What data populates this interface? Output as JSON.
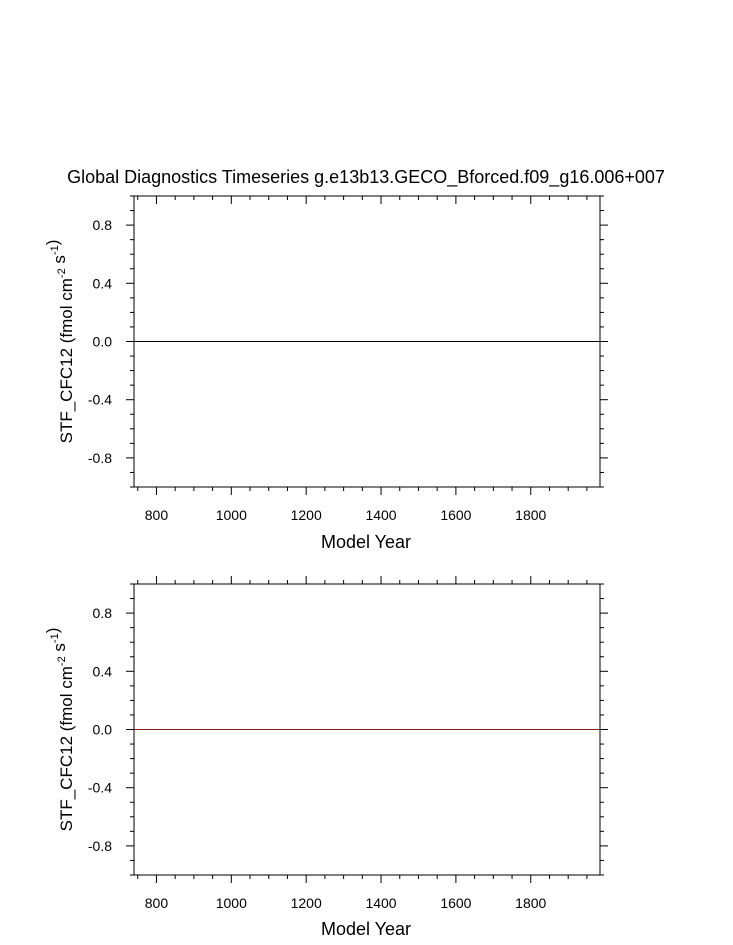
{
  "figure": {
    "title": "Global Diagnostics Timeseries g.e13b13.GECO_Bforced.f09_g16.006+007"
  },
  "chart_data": [
    {
      "type": "line",
      "title": "Global Diagnostics Timeseries g.e13b13.GECO_Bforced.f09_g16.006+007",
      "xlabel": "Model Year",
      "ylabel": {
        "base": "STF_CFC12 (fmol cm",
        "sup1": "-2",
        "mid": " s",
        "sup2": "-1",
        "end": ")"
      },
      "xlim": [
        740,
        1985
      ],
      "ylim": [
        -1.0,
        1.0
      ],
      "xticks": [
        800,
        1000,
        1200,
        1400,
        1600,
        1800
      ],
      "xtick_labels": [
        "800",
        "1000",
        "1200",
        "1400",
        "1600",
        "1800"
      ],
      "yticks": [
        0.8,
        0.4,
        0.0,
        -0.4,
        -0.8
      ],
      "ytick_labels": [
        "0.8",
        "0.4",
        "0.0",
        "-0.4",
        "-0.8"
      ],
      "series": [
        {
          "x": [
            740,
            1985
          ],
          "y": [
            0.0,
            0.0
          ],
          "color": "#000000"
        }
      ],
      "grid": false
    },
    {
      "type": "line",
      "xlabel": "Model Year",
      "ylabel": {
        "base": "STF_CFC12 (fmol cm",
        "sup1": "-2",
        "mid": " s",
        "sup2": "-1",
        "end": ")"
      },
      "xlim": [
        740,
        1985
      ],
      "ylim": [
        -1.0,
        1.0
      ],
      "xticks": [
        800,
        1000,
        1200,
        1400,
        1600,
        1800
      ],
      "xtick_labels": [
        "800",
        "1000",
        "1200",
        "1400",
        "1600",
        "1800"
      ],
      "yticks": [
        0.8,
        0.4,
        0.0,
        -0.4,
        -0.8
      ],
      "ytick_labels": [
        "0.8",
        "0.4",
        "0.0",
        "-0.4",
        "-0.8"
      ],
      "series": [
        {
          "x": [
            740,
            1985
          ],
          "y": [
            0.0,
            0.0
          ],
          "color": "#8b1a1a"
        }
      ],
      "grid": false
    }
  ]
}
